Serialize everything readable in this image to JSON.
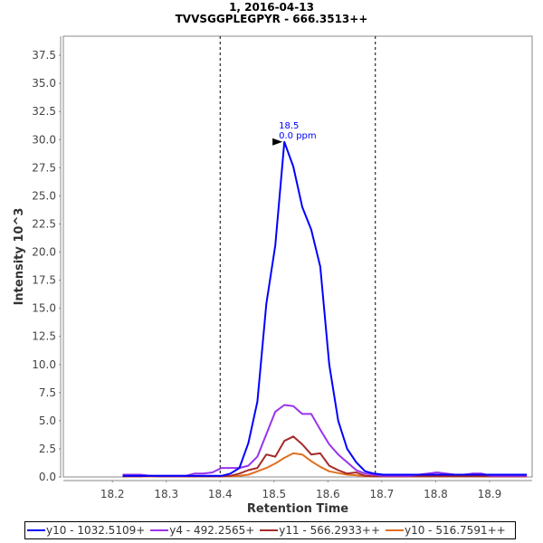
{
  "chart_data": {
    "type": "line",
    "title": "1, 2016-04-13",
    "subtitle": "TVVSGGPLEGPYR - 666.3513++",
    "xlabel": "Retention Time",
    "ylabel": "Intensity 10^3",
    "xlim": [
      18.109,
      18.979
    ],
    "ylim": [
      0,
      39.2
    ],
    "xticks": [
      "18.2",
      "18.3",
      "18.4",
      "18.5",
      "18.6",
      "18.7",
      "18.8",
      "18.9"
    ],
    "yticks": [
      "0.0",
      "2.5",
      "5.0",
      "7.5",
      "10.0",
      "12.5",
      "15.0",
      "17.5",
      "20.0",
      "22.5",
      "25.0",
      "27.5",
      "30.0",
      "32.5",
      "35.0",
      "37.5"
    ],
    "grid": false,
    "legend_position": "bottom",
    "x_start": 18.219,
    "x_step": 0.01667,
    "boundaries": [
      18.4,
      18.688
    ],
    "peak_annotation": {
      "x": 18.519,
      "y": 29.8,
      "label_rt": "18.5",
      "label_ppm": "0.0 ppm",
      "color": "#0000ff"
    },
    "series": [
      {
        "name": "y10 - 1032.5109+",
        "color": "#0000ff",
        "values": [
          0.1,
          0.1,
          0.1,
          0.1,
          0.1,
          0.1,
          0.1,
          0.1,
          0.1,
          0.1,
          0.1,
          0.1,
          0.3,
          0.8,
          3.0,
          6.7,
          15.4,
          20.6,
          29.8,
          27.6,
          24.0,
          22.0,
          18.7,
          10.0,
          5.0,
          2.5,
          1.3,
          0.5,
          0.3,
          0.2,
          0.2,
          0.2,
          0.2,
          0.2,
          0.2,
          0.2,
          0.2,
          0.2,
          0.2,
          0.2,
          0.2,
          0.2,
          0.2,
          0.2,
          0.2,
          0.2
        ]
      },
      {
        "name": "y4 - 492.2565+",
        "color": "#9933ee",
        "values": [
          0.2,
          0.2,
          0.2,
          0.1,
          0.1,
          0.1,
          0.1,
          0.1,
          0.3,
          0.3,
          0.4,
          0.8,
          0.8,
          0.8,
          1.0,
          1.8,
          3.8,
          5.8,
          6.4,
          6.3,
          5.6,
          5.6,
          4.2,
          2.9,
          2.0,
          1.3,
          0.6,
          0.3,
          0.2,
          0.1,
          0.1,
          0.1,
          0.1,
          0.2,
          0.3,
          0.4,
          0.3,
          0.2,
          0.2,
          0.3,
          0.3,
          0.1,
          0.1,
          0.1,
          0.1,
          0.1
        ]
      },
      {
        "name": "y11 - 566.2933++",
        "color": "#a52a2a",
        "values": [
          0.05,
          0.05,
          0.05,
          0.1,
          0.05,
          0.05,
          0.05,
          0.05,
          0.05,
          0.05,
          0.05,
          0.05,
          0.1,
          0.3,
          0.6,
          0.8,
          2.0,
          1.8,
          3.2,
          3.6,
          2.9,
          2.0,
          2.1,
          1.0,
          0.6,
          0.3,
          0.4,
          0.1,
          0.05,
          0.05,
          0.05,
          0.05,
          0.05,
          0.05,
          0.05,
          0.05,
          0.05,
          0.05,
          0.05,
          0.05,
          0.05,
          0.05,
          0.05,
          0.05,
          0.05,
          0.05
        ]
      },
      {
        "name": "y10 - 516.7591++",
        "color": "#e07020",
        "values": [
          0.05,
          0.05,
          0.05,
          0.05,
          0.05,
          0.05,
          0.05,
          0.05,
          0.05,
          0.05,
          0.05,
          0.05,
          0.05,
          0.1,
          0.2,
          0.5,
          0.8,
          1.2,
          1.7,
          2.1,
          2.0,
          1.4,
          0.9,
          0.5,
          0.35,
          0.2,
          0.15,
          0.05,
          0.05,
          0.05,
          0.05,
          0.05,
          0.05,
          0.05,
          0.05,
          0.05,
          0.05,
          0.05,
          0.05,
          0.05,
          0.05,
          0.05,
          0.05,
          0.05,
          0.05,
          0.05
        ]
      }
    ]
  }
}
